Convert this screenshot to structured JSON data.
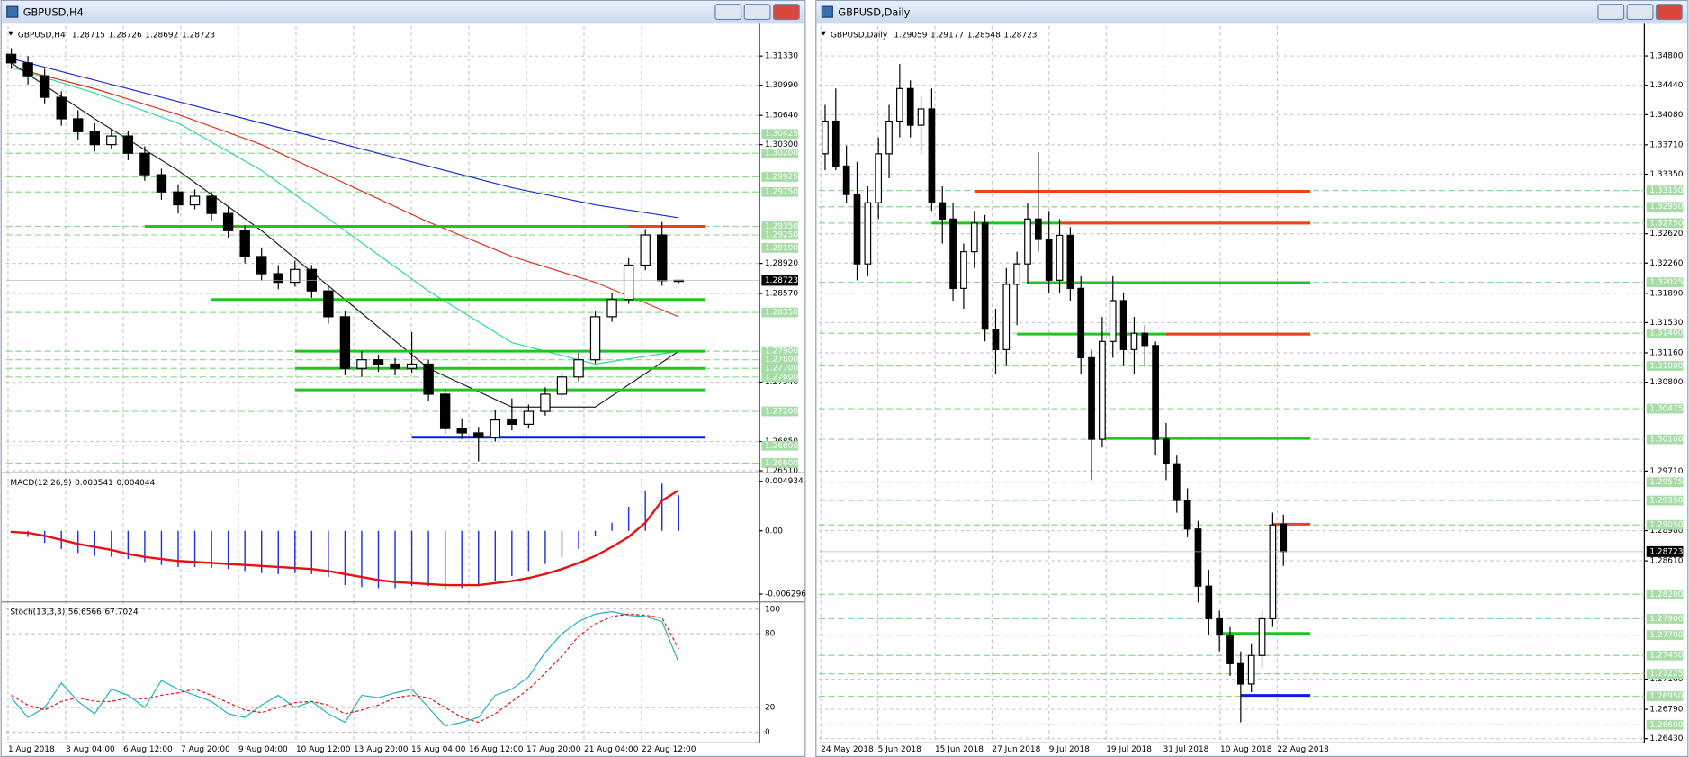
{
  "windows": [
    {
      "title": "GBPUSD,H4",
      "ylim": [
        1.265,
        1.3168
      ],
      "price_ticks": [
        {
          "value": 1.3133,
          "label": "1.31330"
        },
        {
          "value": 1.3099,
          "label": "1.30990"
        },
        {
          "value": 1.3064,
          "label": "1.30640"
        },
        {
          "value": 1.303,
          "label": "1.30300"
        },
        {
          "value": 1.2892,
          "label": "1.28920"
        },
        {
          "value": 1.2857,
          "label": "1.28570"
        },
        {
          "value": 1.2754,
          "label": "1.27540"
        },
        {
          "value": 1.2685,
          "label": "1.26850"
        },
        {
          "value": 1.2651,
          "label": "1.26510"
        }
      ],
      "level_labels": [
        1.30425,
        {
          "value": 1.302,
          "label": "1.30200"
        },
        1.29925,
        {
          "value": 1.2975,
          "label": "1.29750"
        },
        {
          "value": 1.2935,
          "label": "1.29350"
        },
        {
          "value": 1.2925,
          "label": "1.29250"
        },
        {
          "value": 1.291,
          "label": "1.29100"
        },
        {
          "value": 1.2835,
          "label": "1.28350"
        },
        {
          "value": 1.279,
          "label": "1.27900"
        },
        {
          "value": 1.278,
          "label": "1.27800"
        },
        {
          "value": 1.277,
          "label": "1.27700"
        },
        {
          "value": 1.276,
          "label": "1.27600"
        },
        {
          "value": 1.272,
          "label": "1.27200"
        },
        {
          "value": 1.268,
          "label": "1.26800"
        },
        {
          "value": 1.266,
          "label": "1.26600"
        }
      ],
      "time_labels": [
        "1 Aug 2018",
        "3 Aug 04:00",
        "6 Aug 12:00",
        "7 Aug 20:00",
        "9 Aug 04:00",
        "10 Aug 12:00",
        "13 Aug 20:00",
        "15 Aug 04:00",
        "16 Aug 12:00",
        "17 Aug 20:00",
        "21 Aug 04:00",
        "22 Aug 12:00"
      ],
      "candles": [
        [
          1.3135,
          1.3142,
          1.3118,
          1.3125
        ],
        [
          1.3125,
          1.3133,
          1.31,
          1.311
        ],
        [
          1.311,
          1.3118,
          1.3078,
          1.3085
        ],
        [
          1.3085,
          1.3092,
          1.3052,
          1.306
        ],
        [
          1.306,
          1.307,
          1.3036,
          1.3045
        ],
        [
          1.3045,
          1.3055,
          1.3022,
          1.303
        ],
        [
          1.303,
          1.3048,
          1.3025,
          1.304
        ],
        [
          1.304,
          1.3046,
          1.3012,
          1.302
        ],
        [
          1.302,
          1.3028,
          1.2988,
          1.2995
        ],
        [
          1.2995,
          1.3002,
          1.2966,
          1.2975
        ],
        [
          1.2975,
          1.2984,
          1.295,
          1.296
        ],
        [
          1.296,
          1.2978,
          1.2955,
          1.297
        ],
        [
          1.297,
          1.2975,
          1.2942,
          1.295
        ],
        [
          1.295,
          1.2958,
          1.2922,
          1.293
        ],
        [
          1.293,
          1.2936,
          1.2892,
          1.29
        ],
        [
          1.29,
          1.291,
          1.2872,
          1.288
        ],
        [
          1.288,
          1.289,
          1.2862,
          1.287
        ],
        [
          1.287,
          1.2895,
          1.2865,
          1.2885
        ],
        [
          1.2885,
          1.289,
          1.2852,
          1.286
        ],
        [
          1.286,
          1.2866,
          1.2822,
          1.283
        ],
        [
          1.283,
          1.2836,
          1.2762,
          1.277
        ],
        [
          1.277,
          1.279,
          1.276,
          1.278
        ],
        [
          1.278,
          1.2786,
          1.2766,
          1.2775
        ],
        [
          1.2775,
          1.2782,
          1.2762,
          1.277
        ],
        [
          1.277,
          1.2812,
          1.2765,
          1.2775
        ],
        [
          1.2775,
          1.278,
          1.2732,
          1.274
        ],
        [
          1.274,
          1.2746,
          1.2694,
          1.27
        ],
        [
          1.27,
          1.2712,
          1.2688,
          1.2695
        ],
        [
          1.2695,
          1.2702,
          1.2662,
          1.269
        ],
        [
          1.269,
          1.2722,
          1.2685,
          1.271
        ],
        [
          1.271,
          1.2735,
          1.2698,
          1.2705
        ],
        [
          1.2705,
          1.2728,
          1.27,
          1.272
        ],
        [
          1.272,
          1.2748,
          1.2715,
          1.274
        ],
        [
          1.274,
          1.2766,
          1.2735,
          1.276
        ],
        [
          1.276,
          1.2788,
          1.2755,
          1.278
        ],
        [
          1.278,
          1.2836,
          1.2776,
          1.283
        ],
        [
          1.283,
          1.2858,
          1.2824,
          1.285
        ],
        [
          1.285,
          1.2898,
          1.2845,
          1.289
        ],
        [
          1.289,
          1.2932,
          1.2884,
          1.2925
        ],
        [
          1.2925,
          1.294,
          1.2866,
          1.2872
        ],
        [
          1.28715,
          1.28726,
          1.28692,
          1.28723
        ]
      ],
      "levels": [
        {
          "value": 1.2935,
          "color": "#22c422",
          "start": 8
        },
        {
          "value": 1.285,
          "color": "#22c422",
          "start": 12
        },
        {
          "value": 1.279,
          "color": "#22c422",
          "start": 17
        },
        {
          "value": 1.277,
          "color": "#22c422",
          "start": 17
        },
        {
          "value": 1.2745,
          "color": "#22c422",
          "start": 17
        },
        {
          "value": 1.269,
          "color": "#0a1ee0",
          "start": 24
        },
        {
          "value": 1.2935,
          "color": "#f0401c",
          "start": 37
        }
      ],
      "moving_averages": {
        "x": [
          0,
          5,
          10,
          15,
          20,
          25,
          30,
          35,
          40
        ],
        "series": [
          {
            "color": "#1a2bd8",
            "values": [
              1.313,
              1.3105,
              1.308,
              1.3055,
              1.303,
              1.3005,
              1.298,
              1.296,
              1.2945
            ]
          },
          {
            "color": "#e0301e",
            "values": [
              1.312,
              1.3095,
              1.3065,
              1.303,
              1.2985,
              1.294,
              1.29,
              1.287,
              1.283
            ]
          },
          {
            "color": "#30d8a0",
            "values": [
              1.312,
              1.309,
              1.3055,
              1.3,
              1.293,
              1.286,
              1.28,
              1.2775,
              1.279
            ]
          },
          {
            "color": "#222222",
            "values": [
              1.3125,
              1.306,
              1.3,
              1.293,
              1.285,
              1.277,
              1.2725,
              1.2725,
              1.279
            ]
          }
        ]
      },
      "macd": {
        "name": "MACD(12,26,9)",
        "ylim": [
          -0.00686,
          0.00568
        ],
        "ticks": [
          0.004934,
          {
            "value": 0,
            "label": "0.00"
          },
          -0.006296
        ],
        "histogram": [
          -0.0002,
          -0.0006,
          -0.0012,
          -0.0018,
          -0.0022,
          -0.0025,
          -0.0026,
          -0.0028,
          -0.0031,
          -0.0034,
          -0.0036,
          -0.0036,
          -0.0037,
          -0.0038,
          -0.004,
          -0.0042,
          -0.0043,
          -0.0042,
          -0.0043,
          -0.0046,
          -0.0054,
          -0.0056,
          -0.0057,
          -0.0057,
          -0.0055,
          -0.0055,
          -0.0058,
          -0.0057,
          -0.0055,
          -0.005,
          -0.0045,
          -0.004,
          -0.0033,
          -0.0026,
          -0.0018,
          -0.0005,
          0.0008,
          0.0024,
          0.004,
          0.0047,
          0.003541
        ],
        "signal": [
          -0.0001,
          -0.0002,
          -0.0005,
          -0.0009,
          -0.0013,
          -0.0016,
          -0.0019,
          -0.0023,
          -0.0026,
          -0.0028,
          -0.003,
          -0.0031,
          -0.0032,
          -0.0033,
          -0.0034,
          -0.0035,
          -0.0036,
          -0.0037,
          -0.0038,
          -0.004,
          -0.0043,
          -0.0046,
          -0.0049,
          -0.0051,
          -0.0052,
          -0.0053,
          -0.0054,
          -0.0054,
          -0.0054,
          -0.0052,
          -0.005,
          -0.0047,
          -0.0043,
          -0.0038,
          -0.0032,
          -0.0025,
          -0.0016,
          -0.0006,
          0.0008,
          0.003,
          0.004044
        ],
        "histogram_color": "#2030e0",
        "signal_color": "#e81010"
      },
      "stoch": {
        "name": "Stoch(13,3,3)",
        "ylim": [
          -7,
          105
        ],
        "ticks": [
          100,
          80,
          20,
          0
        ],
        "main": [
          28,
          12,
          20,
          40,
          25,
          15,
          35,
          30,
          20,
          42,
          35,
          30,
          25,
          15,
          12,
          22,
          30,
          20,
          25,
          15,
          8,
          30,
          28,
          32,
          35,
          20,
          5,
          8,
          12,
          30,
          35,
          45,
          65,
          80,
          90,
          96,
          98,
          95,
          94,
          90,
          56.6566
        ],
        "signal": [
          30,
          22,
          18,
          25,
          28,
          25,
          25,
          28,
          27,
          30,
          32,
          35,
          30,
          24,
          18,
          16,
          20,
          24,
          25,
          22,
          15,
          18,
          22,
          28,
          30,
          28,
          20,
          12,
          8,
          15,
          25,
          35,
          48,
          62,
          78,
          88,
          94,
          96,
          95,
          93,
          67.7024
        ],
        "main_color": "#20b2c0",
        "signal_color": "#e81010"
      }
    },
    {
      "title": "GBPUSD,Daily",
      "ylim": [
        1.26404,
        1.35168
      ],
      "price_ticks": [
        {
          "value": 1.348,
          "label": "1.34800"
        },
        {
          "value": 1.3444,
          "label": "1.34440"
        },
        {
          "value": 1.3408,
          "label": "1.34080"
        },
        {
          "value": 1.3371,
          "label": "1.33710"
        },
        {
          "value": 1.3335,
          "label": "1.33350"
        },
        {
          "value": 1.3262,
          "label": "1.32620"
        },
        {
          "value": 1.3226,
          "label": "1.32260"
        },
        {
          "value": 1.3189,
          "label": "1.31890"
        },
        {
          "value": 1.3153,
          "label": "1.31530"
        },
        {
          "value": 1.3116,
          "label": "1.31160"
        },
        {
          "value": 1.308,
          "label": "1.30800"
        },
        {
          "value": 1.2971,
          "label": "1.29710"
        },
        {
          "value": 1.2898,
          "label": "1.28980"
        },
        {
          "value": 1.2861,
          "label": "1.28610"
        },
        {
          "value": 1.2716,
          "label": "1.27160"
        },
        {
          "value": 1.2679,
          "label": "1.26790"
        },
        {
          "value": 1.2643,
          "label": "1.26430"
        }
      ],
      "level_labels": [
        {
          "value": 1.3315,
          "label": "1.33150"
        },
        {
          "value": 1.3295,
          "label": "1.32950"
        },
        {
          "value": 1.3275,
          "label": "1.32750"
        },
        1.32025,
        {
          "value": 1.314,
          "label": "1.31400"
        },
        {
          "value": 1.31,
          "label": "1.31000"
        },
        1.30475,
        {
          "value": 1.301,
          "label": "1.30100"
        },
        1.29575,
        {
          "value": 1.2935,
          "label": "1.29350"
        },
        {
          "value": 1.2905,
          "label": "1.29050"
        },
        {
          "value": 1.282,
          "label": "1.28200"
        },
        {
          "value": 1.279,
          "label": "1.27900"
        },
        {
          "value": 1.277,
          "label": "1.27700"
        },
        {
          "value": 1.2745,
          "label": "1.27450"
        },
        1.27225,
        {
          "value": 1.2695,
          "label": "1.26950"
        },
        {
          "value": 1.266,
          "label": "1.26600"
        }
      ],
      "time_labels": [
        "24 May 2018",
        "5 Jun 2018",
        "15 Jun 2018",
        "27 Jun 2018",
        "9 Jul 2018",
        "19 Jul 2018",
        "31 Jul 2018",
        "10 Aug 2018",
        "22 Aug 2018"
      ],
      "candles": [
        [
          1.336,
          1.342,
          1.334,
          1.34
        ],
        [
          1.34,
          1.344,
          1.334,
          1.3345
        ],
        [
          1.3345,
          1.337,
          1.33,
          1.331
        ],
        [
          1.331,
          1.335,
          1.3205,
          1.3225
        ],
        [
          1.3225,
          1.332,
          1.321,
          1.33
        ],
        [
          1.33,
          1.338,
          1.328,
          1.336
        ],
        [
          1.336,
          1.342,
          1.333,
          1.34
        ],
        [
          1.34,
          1.347,
          1.338,
          1.344
        ],
        [
          1.344,
          1.345,
          1.338,
          1.3395
        ],
        [
          1.3395,
          1.343,
          1.336,
          1.3415
        ],
        [
          1.3415,
          1.344,
          1.329,
          1.33
        ],
        [
          1.33,
          1.332,
          1.325,
          1.328
        ],
        [
          1.328,
          1.33,
          1.318,
          1.3195
        ],
        [
          1.3195,
          1.325,
          1.317,
          1.324
        ],
        [
          1.324,
          1.329,
          1.322,
          1.3275
        ],
        [
          1.3275,
          1.3285,
          1.313,
          1.3145
        ],
        [
          1.3145,
          1.317,
          1.309,
          1.312
        ],
        [
          1.312,
          1.322,
          1.31,
          1.32
        ],
        [
          1.32,
          1.324,
          1.315,
          1.3225
        ],
        [
          1.3225,
          1.33,
          1.32,
          1.328
        ],
        [
          1.328,
          1.3362,
          1.324,
          1.3255
        ],
        [
          1.3255,
          1.329,
          1.319,
          1.3205
        ],
        [
          1.3205,
          1.328,
          1.319,
          1.326
        ],
        [
          1.326,
          1.327,
          1.318,
          1.3195
        ],
        [
          1.3195,
          1.321,
          1.309,
          1.311
        ],
        [
          1.311,
          1.312,
          1.296,
          1.301
        ],
        [
          1.301,
          1.316,
          1.3,
          1.313
        ],
        [
          1.313,
          1.321,
          1.311,
          1.318
        ],
        [
          1.318,
          1.319,
          1.31,
          1.312
        ],
        [
          1.312,
          1.316,
          1.309,
          1.314
        ],
        [
          1.314,
          1.315,
          1.31,
          1.3125
        ],
        [
          1.3125,
          1.313,
          1.299,
          1.301
        ],
        [
          1.301,
          1.303,
          1.296,
          1.298
        ],
        [
          1.298,
          1.299,
          1.292,
          1.2935
        ],
        [
          1.2935,
          1.295,
          1.289,
          1.29
        ],
        [
          1.29,
          1.291,
          1.281,
          1.283
        ],
        [
          1.283,
          1.285,
          1.277,
          1.279
        ],
        [
          1.279,
          1.28,
          1.275,
          1.277
        ],
        [
          1.277,
          1.278,
          1.272,
          1.2735
        ],
        [
          1.2735,
          1.275,
          1.2663,
          1.271
        ],
        [
          1.271,
          1.276,
          1.27,
          1.2745
        ],
        [
          1.2745,
          1.28,
          1.273,
          1.279
        ],
        [
          1.279,
          1.292,
          1.278,
          1.2905
        ],
        [
          1.29059,
          1.29177,
          1.28548,
          1.28723
        ]
      ],
      "levels": [
        {
          "value": 1.3275,
          "color": "#22c422",
          "start": 10
        },
        {
          "value": 1.3202,
          "color": "#22c422",
          "start": 19
        },
        {
          "value": 1.3139,
          "color": "#22c422",
          "start": 18
        },
        {
          "value": 1.3011,
          "color": "#22c422",
          "start": 26
        },
        {
          "value": 1.2772,
          "color": "#22c422",
          "start": 37
        },
        {
          "value": 1.2696,
          "color": "#0a1ee0",
          "start": 39
        },
        {
          "value": 1.3314,
          "color": "#f0401c",
          "start": 14
        },
        {
          "value": 1.3275,
          "color": "#f0401c",
          "start": 22
        },
        {
          "value": 1.3139,
          "color": "#f0401c",
          "start": 32
        },
        {
          "value": 1.2906,
          "color": "#f0401c",
          "start": 42
        }
      ]
    }
  ]
}
